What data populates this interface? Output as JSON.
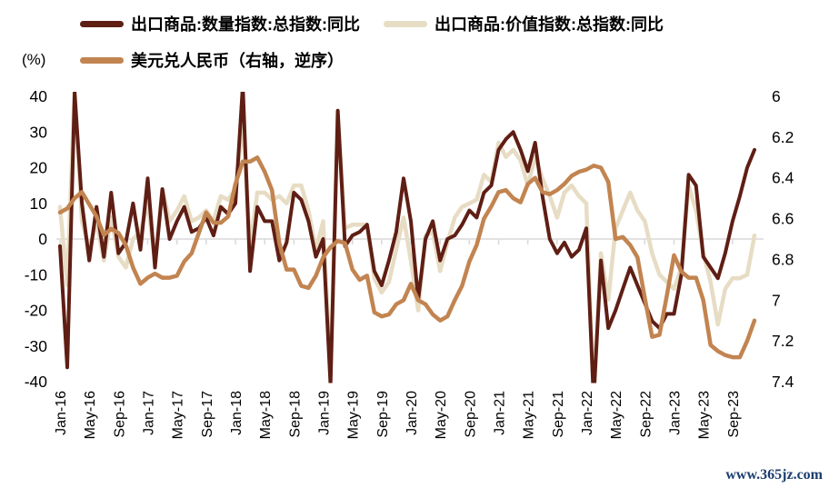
{
  "watermark": "www.365jz.com",
  "chart_data": {
    "type": "line",
    "unit_label": "(%)",
    "x_tick_every": 4,
    "x": [
      "Jan-16",
      "Feb-16",
      "Mar-16",
      "Apr-16",
      "May-16",
      "Jun-16",
      "Jul-16",
      "Aug-16",
      "Sep-16",
      "Oct-16",
      "Nov-16",
      "Dec-16",
      "Jan-17",
      "Feb-17",
      "Mar-17",
      "Apr-17",
      "May-17",
      "Jun-17",
      "Jul-17",
      "Aug-17",
      "Sep-17",
      "Oct-17",
      "Nov-17",
      "Dec-17",
      "Jan-18",
      "Feb-18",
      "Mar-18",
      "Apr-18",
      "May-18",
      "Jun-18",
      "Jul-18",
      "Aug-18",
      "Sep-18",
      "Oct-18",
      "Nov-18",
      "Dec-18",
      "Jan-19",
      "Feb-19",
      "Mar-19",
      "Apr-19",
      "May-19",
      "Jun-19",
      "Jul-19",
      "Aug-19",
      "Sep-19",
      "Oct-19",
      "Nov-19",
      "Dec-19",
      "Jan-20",
      "Feb-20",
      "Mar-20",
      "Apr-20",
      "May-20",
      "Jun-20",
      "Jul-20",
      "Aug-20",
      "Sep-20",
      "Oct-20",
      "Nov-20",
      "Dec-20",
      "Jan-21",
      "Feb-21",
      "Mar-21",
      "Apr-21",
      "May-21",
      "Jun-21",
      "Jul-21",
      "Aug-21",
      "Sep-21",
      "Oct-21",
      "Nov-21",
      "Dec-21",
      "Jan-22",
      "Feb-22",
      "Mar-22",
      "Apr-22",
      "May-22",
      "Jun-22",
      "Jul-22",
      "Aug-22",
      "Sep-22",
      "Oct-22",
      "Nov-22",
      "Dec-22",
      "Jan-23",
      "Feb-23",
      "Mar-23",
      "Apr-23",
      "May-23",
      "Jun-23",
      "Jul-23",
      "Aug-23",
      "Sep-23",
      "Oct-23",
      "Nov-23",
      "Dec-23"
    ],
    "left_axis": {
      "min": -40,
      "max": 40,
      "ticks": [
        "40",
        "30",
        "20",
        "10",
        "0",
        "-10",
        "-20",
        "-30",
        "-40"
      ]
    },
    "right_axis": {
      "min": 6,
      "max": 7.4,
      "inverted": true,
      "ticks": [
        "6",
        "6.2",
        "6.4",
        "6.6",
        "6.8",
        "7",
        "7.2",
        "7.4"
      ]
    },
    "series": [
      {
        "name": "出口商品:数量指数:总指数:同比",
        "axis": "left",
        "color": "#5f1e14",
        "width": 4,
        "values": [
          -2,
          -36,
          41,
          10,
          -6,
          9,
          -5,
          13,
          -4,
          -1,
          10,
          -3,
          17,
          -8,
          14,
          0,
          5,
          9,
          2,
          3,
          6,
          1,
          9,
          7,
          10,
          43,
          -9,
          9,
          5,
          5,
          -6,
          -1,
          13,
          11,
          5,
          -5,
          0,
          -41,
          36,
          -2,
          1,
          2,
          4,
          -9,
          -13,
          -6,
          2,
          17,
          5,
          -17,
          0,
          5,
          -6,
          0,
          1,
          4,
          8,
          6,
          13,
          15,
          25,
          28,
          30,
          25,
          19,
          27,
          12,
          0,
          -4,
          -1,
          -5,
          -3,
          3,
          -45,
          -6,
          -25,
          -20,
          -14,
          -8,
          -13,
          -18,
          -23,
          -25,
          -21,
          -21,
          -10,
          18,
          15,
          -5,
          -8,
          -11,
          -4,
          5,
          12,
          20,
          25
        ]
      },
      {
        "name": "出口商品:价值指数:总指数:同比",
        "axis": "left",
        "color": "#e7dcc4",
        "width": 4.5,
        "values": [
          9,
          -13,
          42,
          5,
          -3,
          5,
          -6,
          6,
          -5,
          -8,
          0,
          2,
          10,
          -6,
          14,
          5,
          8,
          12,
          5,
          6,
          8,
          5,
          12,
          11,
          14,
          33,
          -2,
          13,
          13,
          11,
          12,
          10,
          15,
          15,
          8,
          -3,
          5,
          -38,
          35,
          3,
          4,
          4,
          4,
          -11,
          -15,
          -12,
          -3,
          6,
          -6,
          -20,
          1,
          2,
          -9,
          -1,
          6,
          9,
          10,
          11,
          18,
          16,
          27,
          23,
          25,
          22,
          15,
          23,
          17,
          12,
          6,
          13,
          15,
          12,
          10,
          -44,
          -4,
          -17,
          3,
          8,
          13,
          8,
          5,
          -4,
          -10,
          -12,
          -14,
          -8,
          15,
          8,
          -4,
          -12,
          -24,
          -14,
          -11,
          -11,
          -10,
          1
        ]
      },
      {
        "name": "美元兑人民币（右轴，逆序）",
        "axis": "right",
        "color": "#c28450",
        "width": 4.5,
        "values": [
          6.57,
          6.55,
          6.5,
          6.47,
          6.53,
          6.59,
          6.68,
          6.65,
          6.67,
          6.73,
          6.84,
          6.92,
          6.89,
          6.87,
          6.89,
          6.89,
          6.88,
          6.81,
          6.77,
          6.67,
          6.57,
          6.62,
          6.62,
          6.59,
          6.43,
          6.32,
          6.32,
          6.3,
          6.37,
          6.46,
          6.72,
          6.85,
          6.85,
          6.93,
          6.94,
          6.88,
          6.79,
          6.74,
          6.71,
          6.72,
          6.85,
          6.9,
          6.88,
          7.06,
          7.08,
          7.07,
          7.02,
          7.0,
          6.92,
          7.0,
          7.02,
          7.07,
          7.1,
          7.08,
          7.0,
          6.93,
          6.81,
          6.73,
          6.6,
          6.54,
          6.47,
          6.46,
          6.5,
          6.52,
          6.43,
          6.4,
          6.47,
          6.48,
          6.46,
          6.43,
          6.39,
          6.37,
          6.36,
          6.34,
          6.35,
          6.42,
          6.7,
          6.69,
          6.73,
          6.79,
          6.99,
          7.18,
          7.17,
          6.98,
          6.78,
          6.86,
          6.89,
          6.89,
          7.0,
          7.22,
          7.25,
          7.27,
          7.28,
          7.28,
          7.2,
          7.1
        ]
      }
    ],
    "grid": {
      "zero_line_color": "#d9d9d9",
      "axis_text_color": "#000000"
    }
  }
}
